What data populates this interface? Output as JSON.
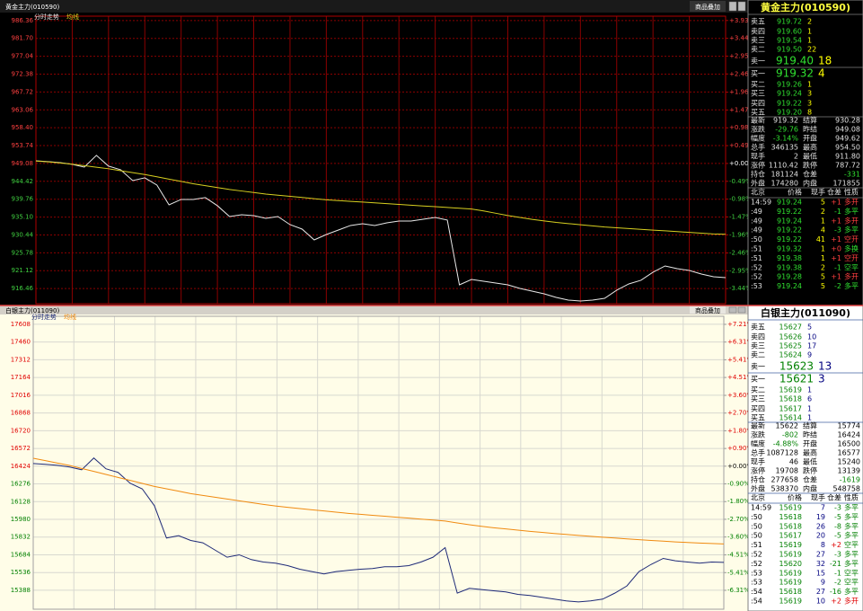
{
  "chart_data": [
    {
      "type": "line",
      "title": "黄金主力(010590)",
      "button": "商品叠加",
      "background": "#000000",
      "grid_color": "#8b0000",
      "grid": true,
      "series": [
        {
          "name": "分时走势",
          "color": "#e8e8e8",
          "values": [
            949.78,
            949.55,
            949.31,
            948.85,
            948.14,
            951.19,
            948.38,
            947.44,
            944.62,
            945.33,
            943.45,
            938.29,
            939.7,
            939.7,
            940.17,
            938.06,
            935.24,
            935.71,
            935.48,
            934.78,
            935.24,
            933.13,
            931.96,
            929.14,
            930.55,
            931.72,
            932.9,
            933.37,
            932.9,
            933.6,
            934.07,
            934.07,
            934.54,
            935.01,
            934.31,
            917.42,
            918.83,
            918.36,
            917.89,
            917.42,
            916.49,
            915.78,
            915.08,
            914.14,
            913.44,
            913.2,
            913.44,
            913.91,
            916.02,
            917.66,
            918.6,
            920.71,
            922.35,
            921.64,
            921.17,
            920.24,
            919.54,
            919.3
          ]
        },
        {
          "name": "均线",
          "color": "#d8d020",
          "values": [
            949.7,
            949.5,
            949.2,
            948.9,
            948.5,
            948.1,
            947.7,
            947.2,
            946.7,
            946.2,
            945.6,
            945.0,
            944.4,
            943.8,
            943.3,
            942.8,
            942.3,
            941.9,
            941.5,
            941.1,
            940.8,
            940.5,
            940.2,
            939.9,
            939.6,
            939.4,
            939.2,
            939.0,
            938.8,
            938.6,
            938.4,
            938.2,
            938.0,
            937.8,
            937.6,
            937.4,
            937.2,
            936.7,
            936.1,
            935.5,
            935.0,
            934.5,
            934.1,
            933.7,
            933.4,
            933.1,
            932.8,
            932.5,
            932.3,
            932.1,
            931.9,
            931.7,
            931.5,
            931.3,
            931.1,
            930.9,
            930.7,
            930.6
          ]
        }
      ],
      "ylim": [
        912.5,
        987.5
      ],
      "yticks": [
        986.36,
        {
          "value": 981.7,
          "label": "981.70"
        },
        977.04,
        972.38,
        967.72,
        963.06,
        {
          "value": 958.4,
          "label": "958.40"
        },
        953.74,
        949.08,
        944.42,
        939.76,
        {
          "value": 935.1,
          "label": "935.10"
        },
        930.44,
        925.78,
        921.12,
        916.46
      ],
      "y2lim": [
        -3.854,
        4.048
      ],
      "y2ticks": [
        {
          "value": 3.93,
          "label": "+3.93%"
        },
        {
          "value": 3.44,
          "label": "+3.44%"
        },
        {
          "value": 2.95,
          "label": "+2.95%"
        },
        {
          "value": 2.46,
          "label": "+2.46%"
        },
        {
          "value": 1.96,
          "label": "+1.96%"
        },
        {
          "value": 1.47,
          "label": "+1.47%"
        },
        {
          "value": 0.98,
          "label": "+0.98%"
        },
        {
          "value": 0.49,
          "label": "+0.49%"
        },
        {
          "value": 0,
          "label": "+0.00%"
        },
        {
          "value": -0.49,
          "label": "-0.49%"
        },
        {
          "value": -0.98,
          "label": "-0.98%"
        },
        {
          "value": -1.47,
          "label": "-1.47%"
        },
        {
          "value": -1.96,
          "label": "-1.96%"
        },
        {
          "value": -2.46,
          "label": "-2.46%"
        },
        {
          "value": -2.95,
          "label": "-2.95%"
        },
        {
          "value": -3.44,
          "label": "-3.44%"
        }
      ]
    },
    {
      "type": "line",
      "title": "白银主力(011090)",
      "button": "商品叠加",
      "background": "#fffde8",
      "grid_color": "#d8d8d0",
      "grid": true,
      "series": [
        {
          "name": "分时走势",
          "color": "#1e2a78",
          "values": [
            16446,
            16439,
            16431,
            16417,
            16394,
            16492,
            16402,
            16372,
            16281,
            16234,
            16094,
            15824,
            15844,
            15804,
            15784,
            15724,
            15664,
            15684,
            15644,
            15624,
            15614,
            15594,
            15564,
            15544,
            15524,
            15544,
            15554,
            15564,
            15569,
            15584,
            15584,
            15594,
            15624,
            15664,
            15744,
            15364,
            15404,
            15394,
            15384,
            15374,
            15354,
            15344,
            15329,
            15314,
            15299,
            15291,
            15299,
            15314,
            15364,
            15424,
            15544,
            15604,
            15654,
            15634,
            15624,
            15614,
            15624,
            15621
          ]
        },
        {
          "name": "均线",
          "color": "#f08a10",
          "values": [
            16490,
            16470,
            16450,
            16430,
            16405,
            16380,
            16355,
            16330,
            16305,
            16280,
            16255,
            16235,
            16215,
            16195,
            16180,
            16165,
            16150,
            16135,
            16120,
            16105,
            16092,
            16080,
            16070,
            16060,
            16050,
            16040,
            16030,
            16022,
            16014,
            16006,
            15998,
            15990,
            15982,
            15974,
            15966,
            15950,
            15935,
            15922,
            15910,
            15900,
            15890,
            15880,
            15871,
            15862,
            15854,
            15846,
            15838,
            15831,
            15824,
            15817,
            15810,
            15804,
            15798,
            15792,
            15787,
            15782,
            15778,
            15775
          ]
        }
      ],
      "ylim": [
        15230,
        17675
      ],
      "yticks": [
        17608,
        17460,
        17312,
        17164,
        17016,
        16868,
        16720,
        16572,
        16424,
        16276,
        16128,
        15980,
        15832,
        15684,
        15536,
        15388
      ],
      "y2lim": [
        -7.27,
        7.62
      ],
      "y2ticks": [
        {
          "value": 7.21,
          "label": "+7.21%"
        },
        {
          "value": 6.31,
          "label": "+6.31%"
        },
        {
          "value": 5.41,
          "label": "+5.41%"
        },
        {
          "value": 4.51,
          "label": "+4.51%"
        },
        {
          "value": 3.6,
          "label": "+3.60%"
        },
        {
          "value": 2.7,
          "label": "+2.70%"
        },
        {
          "value": 1.8,
          "label": "+1.80%"
        },
        {
          "value": 0.9,
          "label": "+0.90%"
        },
        {
          "value": 0,
          "label": "+0.00%"
        },
        {
          "value": -0.9,
          "label": "-0.90%"
        },
        {
          "value": -1.8,
          "label": "-1.80%"
        },
        {
          "value": -2.7,
          "label": "-2.70%"
        },
        {
          "value": -3.6,
          "label": "-3.60%"
        },
        {
          "value": -4.51,
          "label": "-4.51%"
        },
        {
          "value": -5.41,
          "label": "-5.41%"
        },
        {
          "value": -6.31,
          "label": "-6.31%"
        }
      ]
    }
  ],
  "panels": [
    {
      "title": "黄金主力(010590)",
      "book": [
        [
          "卖五",
          "919.72",
          "2"
        ],
        [
          "卖四",
          "919.60",
          "1"
        ],
        [
          "卖三",
          "919.54",
          "1"
        ],
        [
          "卖二",
          "919.50",
          "22"
        ],
        [
          "卖一",
          "919.40",
          "18"
        ],
        [
          "买一",
          "919.32",
          "4"
        ],
        [
          "买二",
          "919.26",
          "1"
        ],
        [
          "买三",
          "919.24",
          "3"
        ],
        [
          "买四",
          "919.22",
          "3"
        ],
        [
          "买五",
          "919.20",
          "8"
        ]
      ],
      "stats": [
        [
          "最新",
          "919.32",
          "结算",
          "930.28"
        ],
        [
          "涨跌",
          "-29.76",
          "昨结",
          "949.08"
        ],
        [
          "幅度",
          "-3.14%",
          "开盘",
          "949.62"
        ],
        [
          "总手",
          "346135",
          "最高",
          "954.50"
        ],
        [
          "现手",
          "2",
          "最低",
          "911.80"
        ],
        [
          "涨停",
          "1110.42",
          "跌停",
          "787.72"
        ],
        [
          "持仓",
          "181124",
          "仓差",
          "-331"
        ],
        [
          "外盘",
          "174280",
          "内盘",
          "171855"
        ]
      ],
      "ticks_header": [
        "北京",
        "价格",
        "现手",
        "仓差",
        "性质"
      ],
      "ticks": [
        [
          "14:59",
          "919.24",
          "5",
          "+1",
          "多开"
        ],
        [
          ":49",
          "919.22",
          "2",
          "-1",
          "多平"
        ],
        [
          ":49",
          "919.24",
          "1",
          "+1",
          "多开"
        ],
        [
          ":49",
          "919.22",
          "4",
          "-3",
          "多平"
        ],
        [
          ":50",
          "919.22",
          "41",
          "+1",
          "空开"
        ],
        [
          ":51",
          "919.32",
          "1",
          "+0",
          "多换"
        ],
        [
          ":51",
          "919.38",
          "1",
          "+1",
          "空开"
        ],
        [
          ":52",
          "919.38",
          "2",
          "-1",
          "空平"
        ],
        [
          ":52",
          "919.28",
          "5",
          "+1",
          "多开"
        ],
        [
          ":53",
          "919.24",
          "5",
          "-2",
          "多平"
        ]
      ]
    },
    {
      "title": "白银主力(011090)",
      "book": [
        [
          "卖五",
          "15627",
          "5"
        ],
        [
          "卖四",
          "15626",
          "10"
        ],
        [
          "卖三",
          "15625",
          "17"
        ],
        [
          "卖二",
          "15624",
          "9"
        ],
        [
          "卖一",
          "15623",
          "13"
        ],
        [
          "买一",
          "15621",
          "3"
        ],
        [
          "买二",
          "15619",
          "1"
        ],
        [
          "买三",
          "15618",
          "6"
        ],
        [
          "买四",
          "15617",
          "1"
        ],
        [
          "买五",
          "15614",
          "1"
        ]
      ],
      "stats": [
        [
          "最新",
          "15622",
          "结算",
          "15774"
        ],
        [
          "涨跌",
          "-802",
          "昨结",
          "16424"
        ],
        [
          "幅度",
          "-4.88%",
          "开盘",
          "16500"
        ],
        [
          "总手",
          "1087128",
          "最高",
          "16577"
        ],
        [
          "现手",
          "46",
          "最低",
          "15240"
        ],
        [
          "涨停",
          "19708",
          "跌停",
          "13139"
        ],
        [
          "持仓",
          "277658",
          "仓差",
          "-1619"
        ],
        [
          "外盘",
          "538370",
          "内盘",
          "548758"
        ]
      ],
      "ticks_header": [
        "北京",
        "价格",
        "现手",
        "仓差",
        "性质"
      ],
      "ticks": [
        [
          "14:59",
          "15619",
          "7",
          "-3",
          "多平"
        ],
        [
          ":50",
          "15618",
          "19",
          "-5",
          "多平"
        ],
        [
          ":50",
          "15618",
          "26",
          "-8",
          "多平"
        ],
        [
          ":50",
          "15617",
          "20",
          "-5",
          "多平"
        ],
        [
          ":51",
          "15619",
          "8",
          "+2",
          "空平"
        ],
        [
          ":52",
          "15619",
          "27",
          "-3",
          "多平"
        ],
        [
          ":52",
          "15620",
          "32",
          "-21",
          "多平"
        ],
        [
          ":53",
          "15619",
          "15",
          "-1",
          "空平"
        ],
        [
          ":53",
          "15619",
          "9",
          "-2",
          "空平"
        ],
        [
          ":54",
          "15618",
          "27",
          "-16",
          "多平"
        ],
        [
          ":54",
          "15619",
          "10",
          "+2",
          "多开"
        ]
      ]
    }
  ]
}
